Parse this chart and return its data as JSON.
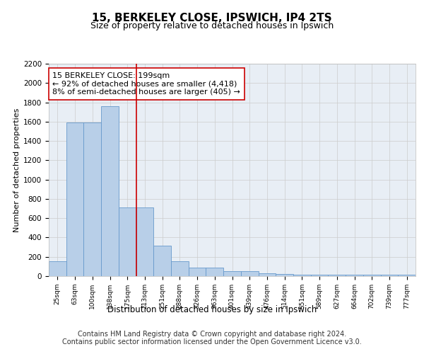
{
  "title1": "15, BERKELEY CLOSE, IPSWICH, IP4 2TS",
  "title2": "Size of property relative to detached houses in Ipswich",
  "xlabel": "Distribution of detached houses by size in Ipswich",
  "ylabel": "Number of detached properties",
  "bar_labels": [
    "25sqm",
    "63sqm",
    "100sqm",
    "138sqm",
    "175sqm",
    "213sqm",
    "251sqm",
    "288sqm",
    "326sqm",
    "363sqm",
    "401sqm",
    "439sqm",
    "476sqm",
    "514sqm",
    "551sqm",
    "589sqm",
    "627sqm",
    "664sqm",
    "702sqm",
    "739sqm",
    "777sqm"
  ],
  "bar_values": [
    155,
    1590,
    1590,
    1760,
    710,
    710,
    315,
    155,
    90,
    90,
    50,
    50,
    28,
    22,
    18,
    18,
    15,
    15,
    15,
    15,
    15
  ],
  "bar_color": "#b8cfe8",
  "bar_edge_color": "#6699cc",
  "vline_color": "#cc0000",
  "annotation_text": "15 BERKELEY CLOSE: 199sqm\n← 92% of detached houses are smaller (4,418)\n8% of semi-detached houses are larger (405) →",
  "annotation_box_color": "white",
  "annotation_box_edge_color": "#cc0000",
  "ylim": [
    0,
    2200
  ],
  "yticks": [
    0,
    200,
    400,
    600,
    800,
    1000,
    1200,
    1400,
    1600,
    1800,
    2000,
    2200
  ],
  "grid_color": "#cccccc",
  "bg_color": "#e8eef5",
  "footnote": "Contains HM Land Registry data © Crown copyright and database right 2024.\nContains public sector information licensed under the Open Government Licence v3.0.",
  "title_fontsize": 11,
  "subtitle_fontsize": 9,
  "annotation_fontsize": 8,
  "footnote_fontsize": 7,
  "ylabel_fontsize": 8,
  "xlabel_fontsize": 8.5,
  "ytick_fontsize": 7.5,
  "xtick_fontsize": 6.5,
  "vline_index": 5
}
